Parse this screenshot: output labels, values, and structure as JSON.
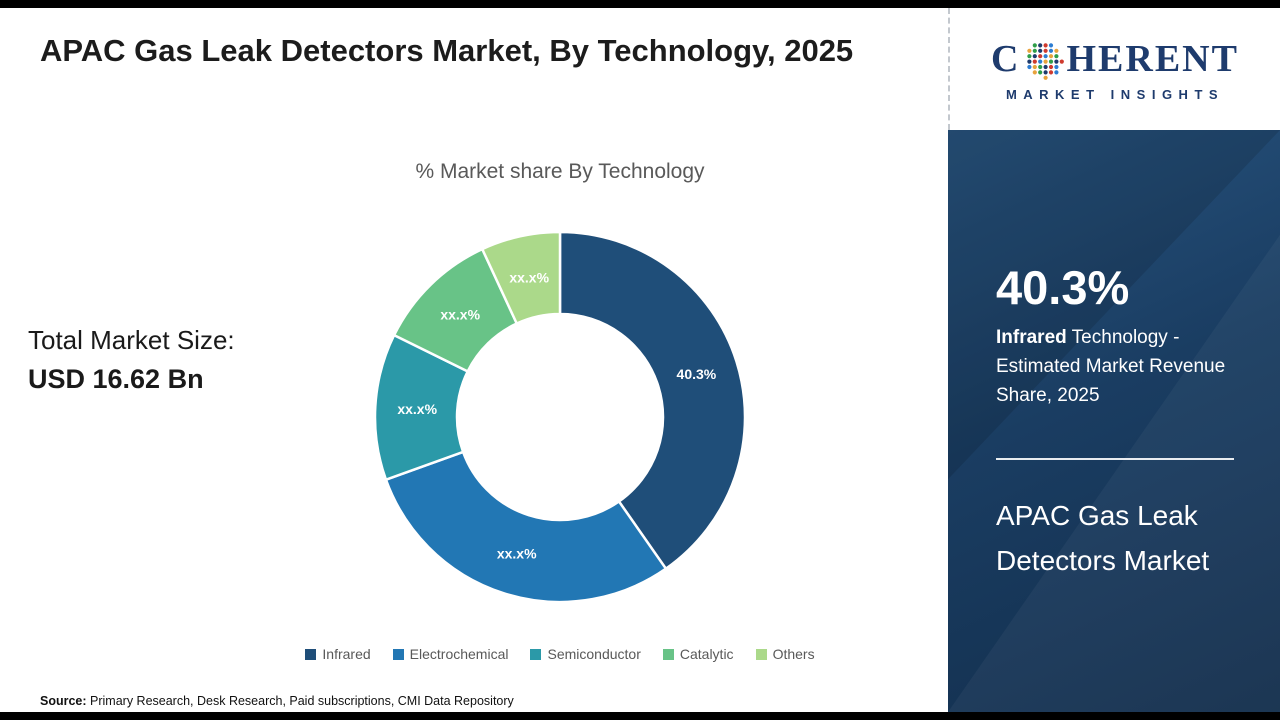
{
  "main": {
    "title": "APAC Gas Leak Detectors Market, By Technology, 2025",
    "chart_subtitle": "% Market share By Technology",
    "market_size_label": "Total Market Size:",
    "market_size_value": "USD 16.62 Bn",
    "source_label": "Source:",
    "source_text": " Primary Research, Desk Research, Paid subscriptions, CMI Data Repository"
  },
  "side": {
    "logo_part1": "C",
    "logo_part2": "HERENT",
    "logo_sub": "MARKET INSIGHTS",
    "logo_color": "#1e3b6d",
    "logo_dot_colors": [
      "#2f9e49",
      "#1e3b6d",
      "#cf3a2e",
      "#2d7dd2",
      "#e8a33d"
    ],
    "highlight_value": "40.3%",
    "highlight_term": "Infrared",
    "highlight_rest": " Technology - Estimated Market Revenue Share, 2025",
    "panel_title": "APAC Gas Leak Detectors Market",
    "panel_background": "#1a3d62"
  },
  "chart_data": {
    "type": "pie",
    "donut": true,
    "title": "% Market share By Technology",
    "legend_position": "bottom",
    "segments": [
      {
        "name": "Infrared",
        "value": 40.3,
        "label": "40.3%",
        "color": "#1f4e79"
      },
      {
        "name": "Electrochemical",
        "value": 29.2,
        "label": "xx.x%",
        "color": "#2277b4"
      },
      {
        "name": "Semiconductor",
        "value": 12.8,
        "label": "xx.x%",
        "color": "#2b99a8"
      },
      {
        "name": "Catalytic",
        "value": 10.8,
        "label": "xx.x%",
        "color": "#68c387"
      },
      {
        "name": "Others",
        "value": 6.9,
        "label": "xx.x%",
        "color": "#abd98a"
      }
    ]
  }
}
